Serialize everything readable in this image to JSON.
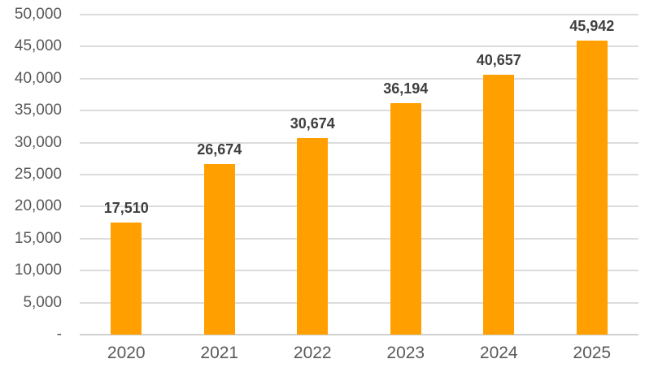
{
  "chart_data": {
    "type": "bar",
    "title": "",
    "xlabel": "",
    "ylabel": "",
    "categories": [
      "2020",
      "2021",
      "2022",
      "2023",
      "2024",
      "2025"
    ],
    "values": [
      17510,
      26674,
      30674,
      36194,
      40657,
      45942
    ],
    "data_labels": [
      "17,510",
      "26,674",
      "30,674",
      "36,194",
      "40,657",
      "45,942"
    ],
    "ylim": [
      0,
      50000
    ],
    "y_tick_step": 5000,
    "y_tick_labels": [
      "-",
      "5,000",
      "10,000",
      "15,000",
      "20,000",
      "25,000",
      "30,000",
      "35,000",
      "40,000",
      "45,000",
      "50,000"
    ],
    "grid": true,
    "legend": false,
    "colors": {
      "bar": "#FFA000",
      "data_label": "#3F3F3F",
      "axis_label": "#595959",
      "gridline": "#DCDCDC",
      "axis_line": "#D0D0D0",
      "background": "#FFFFFF"
    }
  }
}
